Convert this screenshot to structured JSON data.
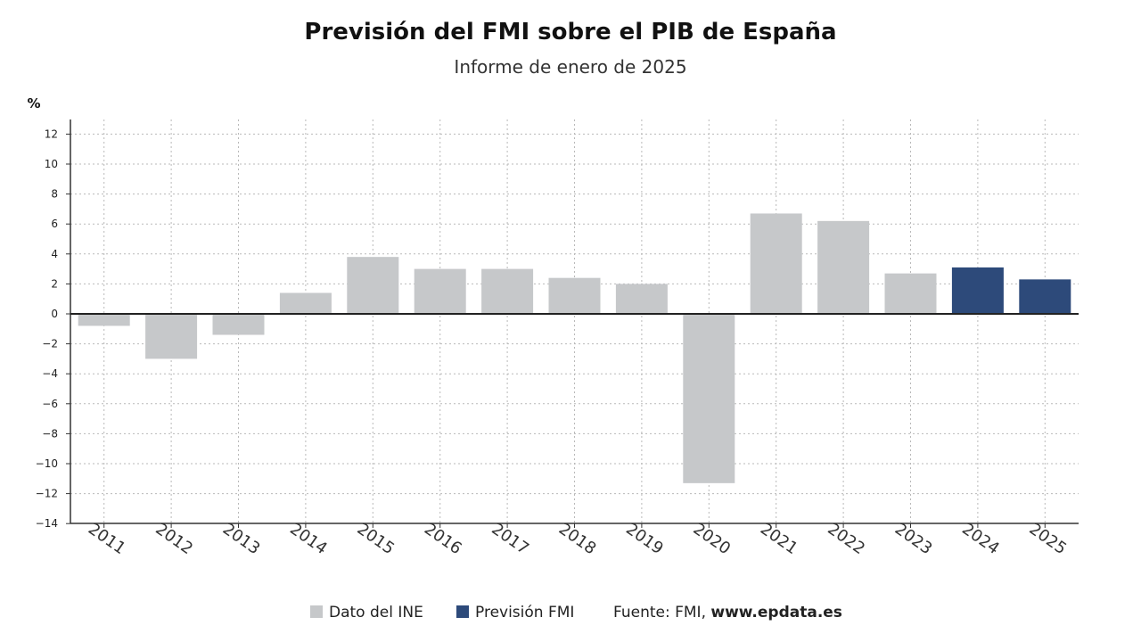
{
  "chart_data": {
    "type": "bar",
    "title": "Previsión del FMI sobre el PIB de España",
    "subtitle": "Informe de enero de 2025",
    "ylabel": "%",
    "ylim": [
      -14,
      12
    ],
    "yticks": [
      12,
      10,
      8,
      6,
      4,
      2,
      0,
      -2,
      -4,
      -6,
      -8,
      -10,
      -12,
      -14
    ],
    "grid": true,
    "legend_position": "bottom",
    "categories": [
      "2011",
      "2012",
      "2013",
      "2014",
      "2015",
      "2016",
      "2017",
      "2018",
      "2019",
      "2020",
      "2021",
      "2022",
      "2023",
      "2024",
      "2025"
    ],
    "series": [
      {
        "name": "Dato del INE",
        "color": "#c6c8ca",
        "values": [
          -0.8,
          -3.0,
          -1.4,
          1.4,
          3.8,
          3.0,
          3.0,
          2.4,
          2.0,
          -11.3,
          6.7,
          6.2,
          2.7,
          null,
          null
        ]
      },
      {
        "name": "Previsión FMI",
        "color": "#2d4a7a",
        "values": [
          null,
          null,
          null,
          null,
          null,
          null,
          null,
          null,
          null,
          null,
          null,
          null,
          null,
          3.1,
          2.3
        ]
      }
    ],
    "source_label": "Fuente: FMI,",
    "source_site": "www.epdata.es"
  }
}
